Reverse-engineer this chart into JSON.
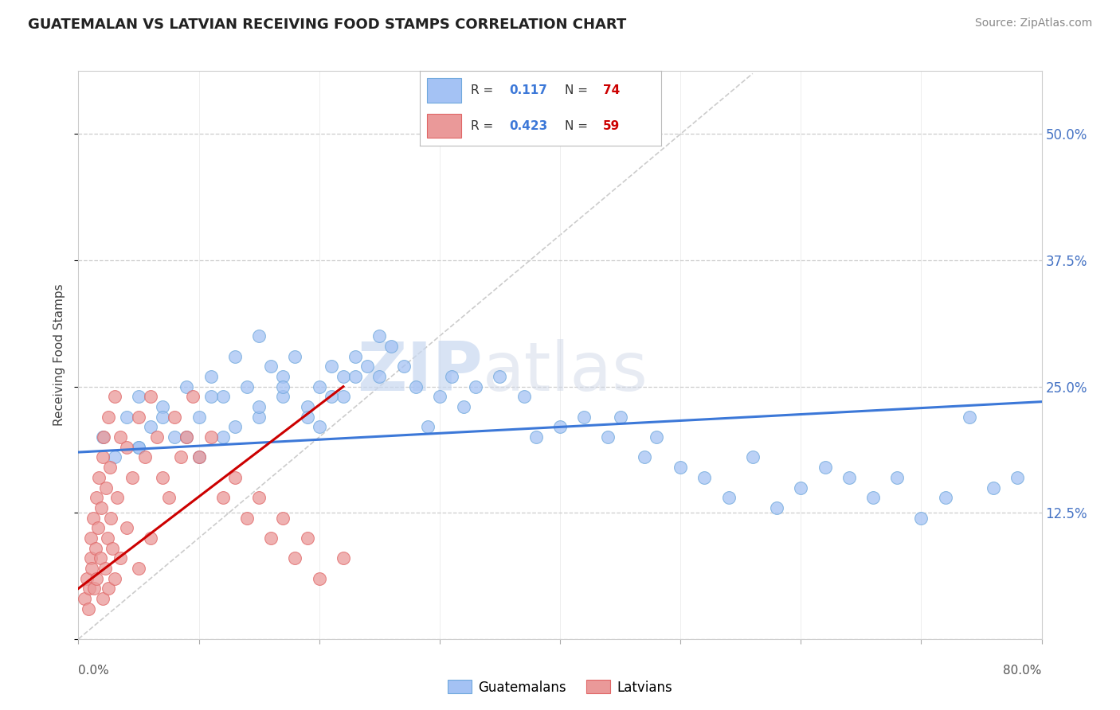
{
  "title": "GUATEMALAN VS LATVIAN RECEIVING FOOD STAMPS CORRELATION CHART",
  "source": "Source: ZipAtlas.com",
  "ylabel": "Receiving Food Stamps",
  "xmin": 0.0,
  "xmax": 80.0,
  "ymin": 0.0,
  "ymax": 56.25,
  "yticks": [
    0.0,
    12.5,
    25.0,
    37.5,
    50.0
  ],
  "ytick_labels": [
    "",
    "12.5%",
    "25.0%",
    "37.5%",
    "50.0%"
  ],
  "xtick_positions": [
    0,
    10,
    20,
    30,
    40,
    50,
    60,
    70,
    80
  ],
  "legend_blue_label": "Guatemalans",
  "legend_pink_label": "Latvians",
  "R_blue": "0.117",
  "N_blue": "74",
  "R_pink": "0.423",
  "N_pink": "59",
  "blue_color": "#6fa8dc",
  "pink_color": "#e06666",
  "blue_fill": "#a4c2f4",
  "pink_fill": "#ea9999",
  "trendline_blue_color": "#3c78d8",
  "trendline_pink_color": "#cc0000",
  "watermark_zip": "ZIP",
  "watermark_atlas": "atlas",
  "blue_scatter_x": [
    2,
    3,
    4,
    5,
    5,
    6,
    7,
    8,
    9,
    10,
    10,
    11,
    12,
    12,
    13,
    14,
    15,
    15,
    16,
    17,
    17,
    18,
    19,
    20,
    20,
    21,
    22,
    22,
    23,
    24,
    25,
    25,
    26,
    27,
    28,
    29,
    30,
    31,
    32,
    33,
    35,
    37,
    38,
    40,
    42,
    44,
    45,
    47,
    48,
    50,
    52,
    54,
    56,
    58,
    60,
    62,
    64,
    66,
    68,
    70,
    72,
    74,
    76,
    78,
    5,
    7,
    9,
    11,
    13,
    15,
    17,
    19,
    21,
    23
  ],
  "blue_scatter_y": [
    20,
    18,
    22,
    19,
    24,
    21,
    23,
    20,
    25,
    22,
    18,
    26,
    24,
    20,
    28,
    25,
    30,
    22,
    27,
    24,
    26,
    28,
    23,
    25,
    21,
    27,
    26,
    24,
    28,
    27,
    26,
    30,
    29,
    27,
    25,
    21,
    24,
    26,
    23,
    25,
    26,
    24,
    20,
    21,
    22,
    20,
    22,
    18,
    20,
    17,
    16,
    14,
    18,
    13,
    15,
    17,
    16,
    14,
    16,
    12,
    14,
    22,
    15,
    16,
    19,
    22,
    20,
    24,
    21,
    23,
    25,
    22,
    24,
    26
  ],
  "pink_scatter_x": [
    0.5,
    0.7,
    0.8,
    0.9,
    1.0,
    1.0,
    1.1,
    1.2,
    1.3,
    1.4,
    1.5,
    1.5,
    1.6,
    1.7,
    1.8,
    1.9,
    2.0,
    2.0,
    2.1,
    2.2,
    2.3,
    2.4,
    2.5,
    2.5,
    2.6,
    2.7,
    2.8,
    3.0,
    3.0,
    3.2,
    3.5,
    3.5,
    4.0,
    4.0,
    4.5,
    5.0,
    5.0,
    5.5,
    6.0,
    6.0,
    6.5,
    7.0,
    7.5,
    8.0,
    8.5,
    9.0,
    9.5,
    10.0,
    11.0,
    12.0,
    13.0,
    14.0,
    15.0,
    16.0,
    17.0,
    18.0,
    19.0,
    20.0,
    22.0
  ],
  "pink_scatter_y": [
    4,
    6,
    3,
    5,
    8,
    10,
    7,
    12,
    5,
    9,
    14,
    6,
    11,
    16,
    8,
    13,
    18,
    4,
    20,
    7,
    15,
    10,
    22,
    5,
    17,
    12,
    9,
    24,
    6,
    14,
    20,
    8,
    19,
    11,
    16,
    22,
    7,
    18,
    24,
    10,
    20,
    16,
    14,
    22,
    18,
    20,
    24,
    18,
    20,
    14,
    16,
    12,
    14,
    10,
    12,
    8,
    10,
    6,
    8
  ],
  "trendline_blue_x0": 0,
  "trendline_blue_x1": 80,
  "trendline_blue_y0": 18.5,
  "trendline_blue_y1": 23.5,
  "trendline_pink_x0": 0,
  "trendline_pink_x1": 22,
  "trendline_pink_y0": 5,
  "trendline_pink_y1": 25,
  "diag_line_x0": 0,
  "diag_line_y0": 0,
  "diag_line_x1": 56,
  "diag_line_y1": 56
}
